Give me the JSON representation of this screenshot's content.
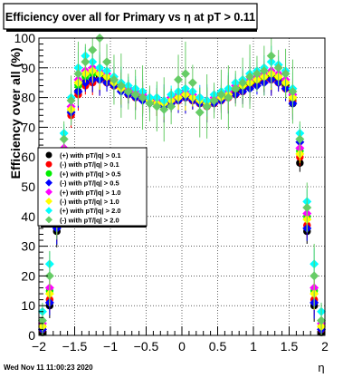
{
  "chart_data": {
    "type": "scatter",
    "title": "Efficiency over all for Primary vs   η at pT > 0.11",
    "xlabel": "η",
    "ylabel": "Efficiency over all (%)",
    "xlim": [
      -2,
      2
    ],
    "ylim": [
      0,
      100
    ],
    "x_ticks": [
      -2,
      -1.5,
      -1,
      -0.5,
      0,
      0.5,
      1,
      1.5,
      2
    ],
    "x_tick_labels": [
      "−2",
      "−1.5",
      "−1",
      "−0.5",
      "0",
      "0.5",
      "1",
      "1.5",
      "2"
    ],
    "y_ticks": [
      0,
      10,
      20,
      30,
      40,
      50,
      60,
      70,
      80,
      90,
      100
    ],
    "y_tick_labels": [
      "0",
      "10",
      "20",
      "30",
      "40",
      "50",
      "60",
      "70",
      "80",
      "90",
      "100"
    ],
    "grid": true,
    "legend_position": "left-middle",
    "timestamp": "Wed Nov 11 11:00:23 2020",
    "series": [
      {
        "name": "(+) with pT/|q| > 0.1",
        "color": "#000000",
        "x": [
          -1.95,
          -1.85,
          -1.75,
          -1.65,
          -1.55,
          -1.45,
          -1.35,
          -1.25,
          -1.15,
          -1.05,
          -0.95,
          -0.85,
          -0.75,
          -0.65,
          -0.55,
          -0.45,
          -0.35,
          -0.25,
          -0.15,
          -0.05,
          0.05,
          0.15,
          0.25,
          0.35,
          0.45,
          0.55,
          0.65,
          0.75,
          0.85,
          0.95,
          1.05,
          1.15,
          1.25,
          1.35,
          1.45,
          1.55,
          1.65,
          1.75,
          1.85,
          1.95
        ],
        "y": [
          1,
          10,
          35,
          58,
          75,
          82,
          85,
          86,
          87,
          86,
          84,
          83,
          82,
          81,
          80,
          79,
          78,
          78,
          79,
          80,
          80,
          79,
          78,
          78,
          79,
          80,
          81,
          82,
          83,
          84,
          85,
          86,
          87,
          86,
          84,
          78,
          58,
          35,
          10,
          1
        ]
      },
      {
        "name": "(-) with pT/|q| > 0.1",
        "color": "#ff0000",
        "x": [
          -1.95,
          -1.85,
          -1.75,
          -1.65,
          -1.55,
          -1.45,
          -1.35,
          -1.25,
          -1.15,
          -1.05,
          -0.95,
          -0.85,
          -0.75,
          -0.65,
          -0.55,
          -0.45,
          -0.35,
          -0.25,
          -0.15,
          -0.05,
          0.05,
          0.15,
          0.25,
          0.35,
          0.45,
          0.55,
          0.65,
          0.75,
          0.85,
          0.95,
          1.05,
          1.15,
          1.25,
          1.35,
          1.45,
          1.55,
          1.65,
          1.75,
          1.85,
          1.95
        ],
        "y": [
          2,
          12,
          37,
          60,
          74,
          81,
          84,
          85,
          86,
          85,
          84,
          83,
          81,
          80,
          80,
          79,
          78,
          77,
          78,
          79,
          80,
          79,
          78,
          77,
          78,
          79,
          80,
          81,
          82,
          84,
          85,
          86,
          86,
          85,
          83,
          79,
          60,
          37,
          12,
          2
        ]
      },
      {
        "name": "(+) with pT/|q| > 0.5",
        "color": "#00ee00",
        "x": [
          -1.95,
          -1.85,
          -1.75,
          -1.65,
          -1.55,
          -1.45,
          -1.35,
          -1.25,
          -1.15,
          -1.05,
          -0.95,
          -0.85,
          -0.75,
          -0.65,
          -0.55,
          -0.45,
          -0.35,
          -0.25,
          -0.15,
          -0.05,
          0.05,
          0.15,
          0.25,
          0.35,
          0.45,
          0.55,
          0.65,
          0.75,
          0.85,
          0.95,
          1.05,
          1.15,
          1.25,
          1.35,
          1.45,
          1.55,
          1.65,
          1.75,
          1.85,
          1.95
        ],
        "y": [
          3,
          15,
          40,
          62,
          76,
          84,
          87,
          88,
          88,
          87,
          85,
          84,
          83,
          82,
          80,
          79,
          79,
          78,
          80,
          81,
          81,
          80,
          79,
          78,
          79,
          80,
          82,
          83,
          84,
          85,
          86,
          87,
          88,
          87,
          85,
          80,
          62,
          40,
          15,
          3
        ]
      },
      {
        "name": "(-) with pT/|q| > 0.5",
        "color": "#0000ff",
        "x": [
          -1.95,
          -1.85,
          -1.75,
          -1.65,
          -1.55,
          -1.45,
          -1.35,
          -1.25,
          -1.15,
          -1.05,
          -0.95,
          -0.85,
          -0.75,
          -0.65,
          -0.55,
          -0.45,
          -0.35,
          -0.25,
          -0.15,
          -0.05,
          0.05,
          0.15,
          0.25,
          0.35,
          0.45,
          0.55,
          0.65,
          0.75,
          0.85,
          0.95,
          1.05,
          1.15,
          1.25,
          1.35,
          1.45,
          1.55,
          1.65,
          1.75,
          1.85,
          1.95
        ],
        "y": [
          2,
          11,
          36,
          59,
          75,
          82,
          85,
          86,
          86,
          85,
          84,
          82,
          81,
          80,
          79,
          78,
          78,
          77,
          78,
          79,
          80,
          79,
          78,
          77,
          78,
          79,
          80,
          81,
          82,
          83,
          84,
          85,
          86,
          85,
          83,
          78,
          65,
          36,
          11,
          2
        ]
      },
      {
        "name": "(+) with pT/|q| > 1.0",
        "color": "#ff00ff",
        "x": [
          -1.95,
          -1.85,
          -1.75,
          -1.65,
          -1.55,
          -1.45,
          -1.35,
          -1.25,
          -1.15,
          -1.05,
          -0.95,
          -0.85,
          -0.75,
          -0.65,
          -0.55,
          -0.45,
          -0.35,
          -0.25,
          -0.15,
          -0.05,
          0.05,
          0.15,
          0.25,
          0.35,
          0.45,
          0.55,
          0.65,
          0.75,
          0.85,
          0.95,
          1.05,
          1.15,
          1.25,
          1.35,
          1.45,
          1.55,
          1.65,
          1.75,
          1.85,
          1.95
        ],
        "y": [
          4,
          16,
          41,
          63,
          77,
          86,
          89,
          90,
          89,
          88,
          86,
          84,
          83,
          82,
          81,
          80,
          79,
          79,
          80,
          81,
          82,
          81,
          80,
          79,
          80,
          81,
          82,
          84,
          85,
          86,
          87,
          88,
          89,
          88,
          86,
          81,
          63,
          41,
          16,
          4
        ]
      },
      {
        "name": "(-) with pT/|q| > 1.0",
        "color": "#ffff00",
        "x": [
          -1.95,
          -1.85,
          -1.75,
          -1.65,
          -1.55,
          -1.45,
          -1.35,
          -1.25,
          -1.15,
          -1.05,
          -0.95,
          -0.85,
          -0.75,
          -0.65,
          -0.55,
          -0.45,
          -0.35,
          -0.25,
          -0.15,
          -0.05,
          0.05,
          0.15,
          0.25,
          0.35,
          0.45,
          0.55,
          0.65,
          0.75,
          0.85,
          0.95,
          1.05,
          1.15,
          1.25,
          1.35,
          1.45,
          1.55,
          1.65,
          1.75,
          1.85,
          1.95
        ],
        "y": [
          3,
          14,
          39,
          61,
          76,
          85,
          88,
          89,
          88,
          87,
          85,
          83,
          82,
          81,
          80,
          79,
          78,
          78,
          79,
          80,
          81,
          80,
          79,
          78,
          79,
          80,
          81,
          83,
          84,
          85,
          86,
          87,
          88,
          87,
          85,
          80,
          61,
          39,
          14,
          3
        ]
      },
      {
        "name": "(+) with pT/|q| > 2.0",
        "color": "#00ffff",
        "x": [
          -1.95,
          -1.85,
          -1.75,
          -1.65,
          -1.55,
          -1.45,
          -1.35,
          -1.25,
          -1.15,
          -1.05,
          -0.95,
          -0.85,
          -0.75,
          -0.65,
          -0.55,
          -0.45,
          -0.35,
          -0.25,
          -0.15,
          -0.05,
          0.05,
          0.15,
          0.25,
          0.35,
          0.45,
          0.55,
          0.65,
          0.75,
          0.85,
          0.95,
          1.05,
          1.15,
          1.25,
          1.35,
          1.45,
          1.55,
          1.65,
          1.75,
          1.85,
          1.95
        ],
        "y": [
          8,
          24,
          45,
          68,
          80,
          90,
          94,
          92,
          90,
          89,
          87,
          85,
          84,
          83,
          82,
          80,
          80,
          79,
          81,
          82,
          83,
          82,
          80,
          79,
          81,
          82,
          83,
          85,
          86,
          88,
          89,
          90,
          92,
          91,
          89,
          83,
          68,
          45,
          24,
          8
        ]
      },
      {
        "name": "(-) with pT/|q| > 2.0",
        "color": "#66cc66",
        "x": [
          -1.95,
          -1.85,
          -1.75,
          -1.65,
          -1.55,
          -1.45,
          -1.35,
          -1.25,
          -1.15,
          -1.05,
          -0.95,
          -0.85,
          -0.75,
          -0.65,
          -0.55,
          -0.45,
          -0.35,
          -0.25,
          -0.15,
          -0.05,
          0.05,
          0.15,
          0.25,
          0.35,
          0.45,
          0.55,
          0.65,
          0.75,
          0.85,
          0.95,
          1.05,
          1.15,
          1.25,
          1.35,
          1.45,
          1.55,
          1.65,
          1.75,
          1.85,
          1.95
        ],
        "y": [
          5,
          20,
          43,
          66,
          79,
          88,
          92,
          96,
          100,
          92,
          86,
          84,
          82,
          81,
          80,
          78,
          77,
          76,
          77,
          86,
          88,
          85,
          75,
          77,
          79,
          81,
          80,
          83,
          85,
          87,
          88,
          89,
          94,
          90,
          88,
          82,
          66,
          43,
          20,
          5
        ]
      }
    ]
  }
}
